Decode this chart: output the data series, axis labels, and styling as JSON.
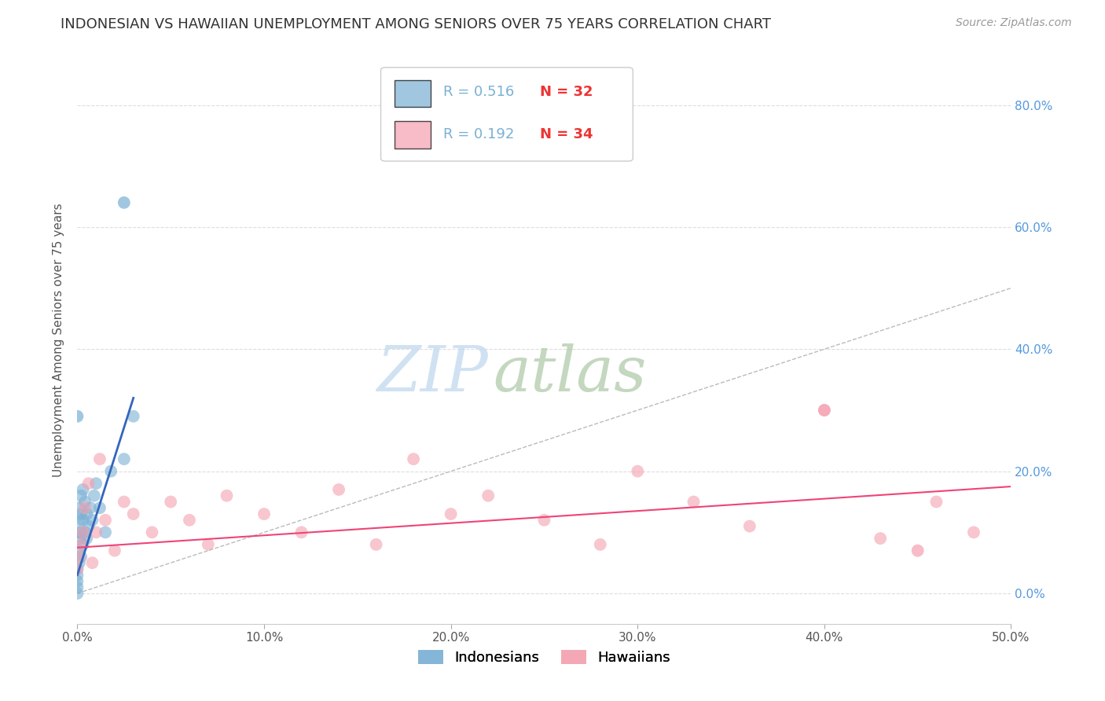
{
  "title": "INDONESIAN VS HAWAIIAN UNEMPLOYMENT AMONG SENIORS OVER 75 YEARS CORRELATION CHART",
  "source": "Source: ZipAtlas.com",
  "ylabel": "Unemployment Among Seniors over 75 years",
  "xlim": [
    0.0,
    0.5
  ],
  "ylim": [
    -0.05,
    0.88
  ],
  "legend_label1": "Indonesians",
  "legend_label2": "Hawaiians",
  "legend_R1": "0.516",
  "legend_N1": "32",
  "legend_R2": "0.192",
  "legend_N2": "34",
  "color_indonesian": "#7AB0D4",
  "color_hawaiian": "#F4A0B0",
  "color_trendline1": "#3366BB",
  "color_trendline2": "#EE4477",
  "color_diagonal": "#BBBBBB",
  "color_right_axis": "#5599DD",
  "background": "#FFFFFF",
  "watermark_zip": "ZIP",
  "watermark_atlas": "atlas",
  "indonesian_x": [
    0.0,
    0.0,
    0.0,
    0.0,
    0.0,
    0.001,
    0.001,
    0.001,
    0.001,
    0.001,
    0.001,
    0.002,
    0.002,
    0.002,
    0.002,
    0.003,
    0.003,
    0.003,
    0.004,
    0.004,
    0.005,
    0.005,
    0.006,
    0.007,
    0.008,
    0.009,
    0.01,
    0.012,
    0.015,
    0.018,
    0.025,
    0.03
  ],
  "indonesian_y": [
    0.0,
    0.01,
    0.02,
    0.03,
    0.04,
    0.05,
    0.07,
    0.09,
    0.1,
    0.12,
    0.14,
    0.06,
    0.1,
    0.13,
    0.16,
    0.08,
    0.12,
    0.17,
    0.1,
    0.15,
    0.09,
    0.13,
    0.11,
    0.14,
    0.12,
    0.16,
    0.18,
    0.14,
    0.1,
    0.2,
    0.22,
    0.29
  ],
  "indonesian_outlier_x": [
    0.025
  ],
  "indonesian_outlier_y": [
    0.64
  ],
  "indonesian_left_outlier_x": [
    0.0
  ],
  "indonesian_left_outlier_y": [
    0.29
  ],
  "hawaiian_x": [
    0.0,
    0.001,
    0.002,
    0.003,
    0.004,
    0.006,
    0.008,
    0.01,
    0.012,
    0.015,
    0.02,
    0.025,
    0.03,
    0.04,
    0.05,
    0.06,
    0.07,
    0.08,
    0.1,
    0.12,
    0.14,
    0.16,
    0.18,
    0.2,
    0.22,
    0.25,
    0.28,
    0.3,
    0.33,
    0.36,
    0.4,
    0.43,
    0.46,
    0.48
  ],
  "hawaiian_y": [
    0.04,
    0.06,
    0.08,
    0.1,
    0.14,
    0.18,
    0.05,
    0.1,
    0.22,
    0.12,
    0.07,
    0.15,
    0.13,
    0.1,
    0.15,
    0.12,
    0.08,
    0.16,
    0.13,
    0.1,
    0.17,
    0.08,
    0.22,
    0.13,
    0.16,
    0.12,
    0.08,
    0.2,
    0.15,
    0.11,
    0.3,
    0.09,
    0.15,
    0.1
  ],
  "ytick_vals": [
    0.0,
    0.2,
    0.4,
    0.6,
    0.8
  ],
  "xtick_vals": [
    0.0,
    0.1,
    0.2,
    0.3,
    0.4,
    0.5
  ],
  "grid_color": "#DDDDDD",
  "title_fontsize": 13,
  "source_fontsize": 10,
  "tick_fontsize": 11,
  "legend_fontsize": 13
}
